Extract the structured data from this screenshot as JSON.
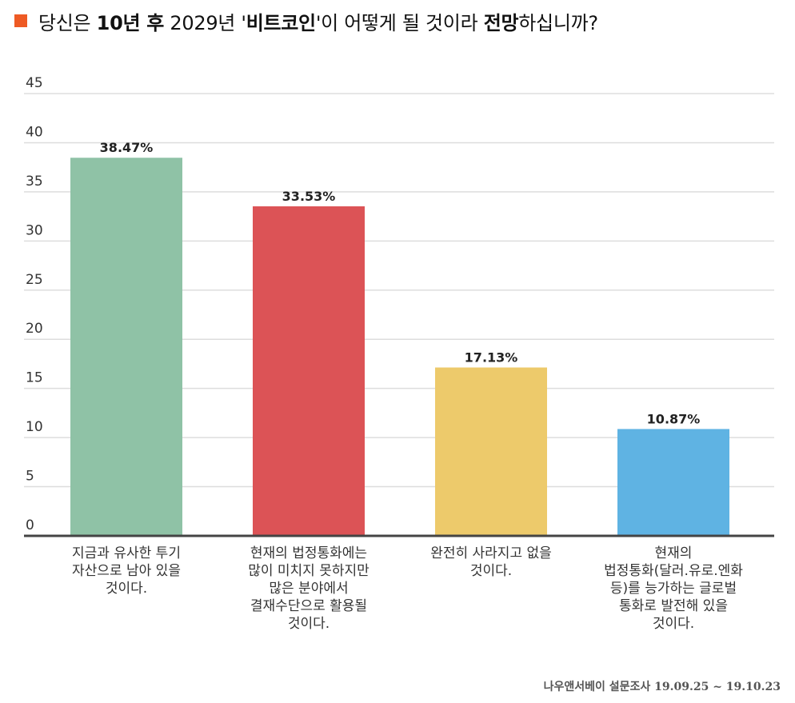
{
  "title": {
    "accent_color": "#ee5a24",
    "segments": [
      {
        "text": "당신은 ",
        "bold": false
      },
      {
        "text": "10년 후",
        "bold": true
      },
      {
        "text": " 2029년 '",
        "bold": false
      },
      {
        "text": "비트코인",
        "bold": true
      },
      {
        "text": "'이 어떻게 될 것이라 ",
        "bold": false
      },
      {
        "text": "전망",
        "bold": true
      },
      {
        "text": "하십니까?",
        "bold": false
      }
    ]
  },
  "footer": {
    "source": "나우앤서베이 설문조사 19.09.25 ~ 19.10.23"
  },
  "chart_data": {
    "type": "bar",
    "title": "당신은 10년 후 2029년 '비트코인'이 어떻게 될 것이라 전망하십니까?",
    "xlabel": "",
    "ylabel": "",
    "ylim": [
      0,
      45
    ],
    "yticks": [
      0,
      5,
      10,
      15,
      20,
      25,
      30,
      35,
      40,
      45
    ],
    "grid": true,
    "legend": "none",
    "categories": [
      [
        "지금과 유사한 투기",
        "자산으로 남아 있을",
        "것이다."
      ],
      [
        "현재의 법정통화에는",
        "많이 미치지 못하지만",
        "많은 분야에서",
        "결재수단으로 활용될",
        "것이다."
      ],
      [
        "완전히 사라지고 없을",
        "것이다."
      ],
      [
        "현재의",
        "법정통화(달러.유로.엔화",
        "등)를 능가하는 글로벌",
        "통화로 발전해 있을",
        "것이다."
      ]
    ],
    "values": [
      38.47,
      33.53,
      17.13,
      10.87
    ],
    "value_labels": [
      "38.47%",
      "33.53%",
      "17.13%",
      "10.87%"
    ],
    "colors": [
      "#8fc2a6",
      "#dc5356",
      "#edca6b",
      "#5fb3e3"
    ],
    "grid_color": "#dddddd",
    "axis_color": "#444444"
  }
}
